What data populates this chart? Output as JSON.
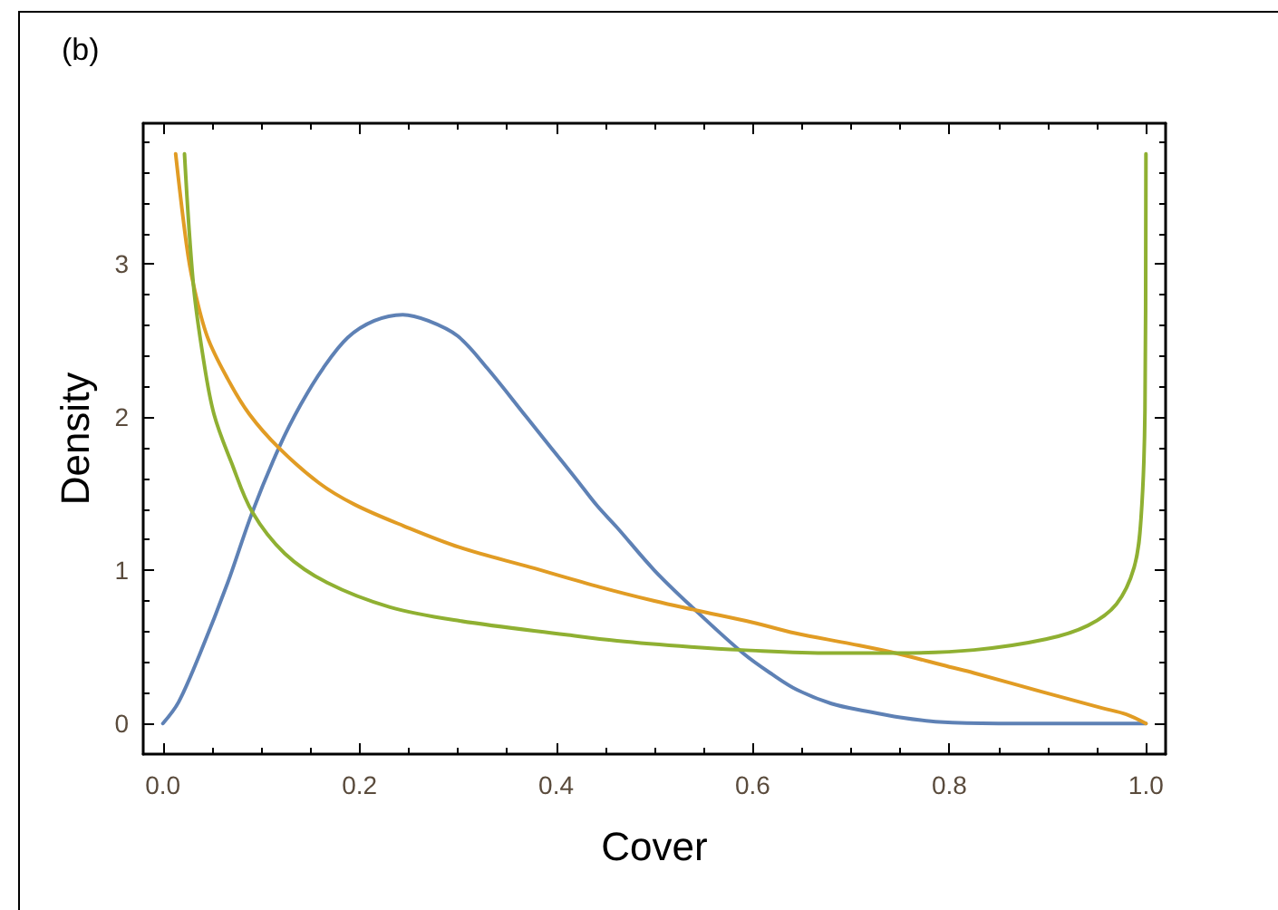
{
  "chart_data": {
    "type": "line",
    "title": "(b)",
    "xlabel": "Cover",
    "ylabel": "Density",
    "xlim": [
      -0.02,
      1.02
    ],
    "ylim": [
      -0.2,
      3.92
    ],
    "xticks": [
      {
        "value": 0,
        "label": "0.0"
      },
      {
        "value": 0.05,
        "label": null
      },
      {
        "value": 0.1,
        "label": null
      },
      {
        "value": 0.15,
        "label": null
      },
      0.2,
      {
        "value": 0.25,
        "label": null
      },
      {
        "value": 0.3,
        "label": null
      },
      {
        "value": 0.35,
        "label": null
      },
      0.4,
      {
        "value": 0.45,
        "label": null
      },
      {
        "value": 0.5,
        "label": null
      },
      {
        "value": 0.55,
        "label": null
      },
      0.6,
      {
        "value": 0.65,
        "label": null
      },
      {
        "value": 0.7,
        "label": null
      },
      {
        "value": 0.75,
        "label": null
      },
      0.8,
      {
        "value": 0.85,
        "label": null
      },
      {
        "value": 0.9,
        "label": null
      },
      {
        "value": 0.95,
        "label": null
      },
      {
        "value": 1,
        "label": "1.0"
      }
    ],
    "yticks": [
      0,
      {
        "value": 0.2,
        "label": null
      },
      {
        "value": 0.4,
        "label": null
      },
      {
        "value": 0.6,
        "label": null
      },
      {
        "value": 0.8,
        "label": null
      },
      1,
      {
        "value": 1.2,
        "label": null
      },
      {
        "value": 1.4,
        "label": null
      },
      {
        "value": 1.6,
        "label": null
      },
      {
        "value": 1.8,
        "label": null
      },
      2,
      {
        "value": 2.2,
        "label": null
      },
      {
        "value": 2.4,
        "label": null
      },
      {
        "value": 2.6,
        "label": null
      },
      {
        "value": 2.8,
        "label": null
      },
      3,
      {
        "value": 3.2,
        "label": null
      },
      {
        "value": 3.4,
        "label": null
      },
      {
        "value": 3.6,
        "label": null
      },
      {
        "value": 3.8,
        "label": null
      }
    ],
    "series": [
      {
        "color": "#5e81b5",
        "x": [
          0,
          0.016,
          0.038,
          0.066,
          0.091,
          0.118,
          0.14,
          0.163,
          0.188,
          0.215,
          0.244,
          0.27,
          0.3,
          0.33,
          0.37,
          0.395,
          0.42,
          0.442,
          0.462,
          0.5,
          0.54,
          0.59,
          0.62,
          0.645,
          0.68,
          0.716,
          0.75,
          0.79,
          0.85,
          1.0
        ],
        "values": [
          0,
          0.14,
          0.46,
          0.92,
          1.38,
          1.8,
          2.08,
          2.32,
          2.52,
          2.63,
          2.67,
          2.63,
          2.53,
          2.32,
          2.0,
          1.8,
          1.6,
          1.42,
          1.28,
          1.0,
          0.75,
          0.46,
          0.32,
          0.22,
          0.13,
          0.08,
          0.04,
          0.01,
          0,
          0
        ]
      },
      {
        "color": "#e19c24",
        "x": [
          0.013,
          0.024,
          0.031,
          0.045,
          0.066,
          0.088,
          0.118,
          0.159,
          0.195,
          0.245,
          0.302,
          0.374,
          0.445,
          0.5,
          0.542,
          0.6,
          0.643,
          0.7,
          0.745,
          0.8,
          0.825,
          0.898,
          0.956,
          0.98,
          1.0
        ],
        "values": [
          3.72,
          3.13,
          2.87,
          2.53,
          2.25,
          2.02,
          1.8,
          1.57,
          1.43,
          1.29,
          1.15,
          1.02,
          0.89,
          0.8,
          0.74,
          0.66,
          0.59,
          0.52,
          0.46,
          0.37,
          0.33,
          0.2,
          0.1,
          0.06,
          0
        ]
      },
      {
        "color": "#8fb032",
        "x": [
          0.022,
          0.031,
          0.041,
          0.052,
          0.07,
          0.091,
          0.124,
          0.167,
          0.231,
          0.302,
          0.41,
          0.462,
          0.537,
          0.589,
          0.68,
          0.745,
          0.825,
          0.898,
          0.941,
          0.97,
          0.988,
          0.995,
          0.999,
          1.0
        ],
        "values": [
          3.72,
          2.87,
          2.39,
          2.02,
          1.7,
          1.38,
          1.11,
          0.92,
          0.76,
          0.67,
          0.58,
          0.54,
          0.5,
          0.48,
          0.46,
          0.46,
          0.48,
          0.55,
          0.64,
          0.78,
          1.02,
          1.34,
          2.04,
          3.72
        ]
      }
    ]
  }
}
